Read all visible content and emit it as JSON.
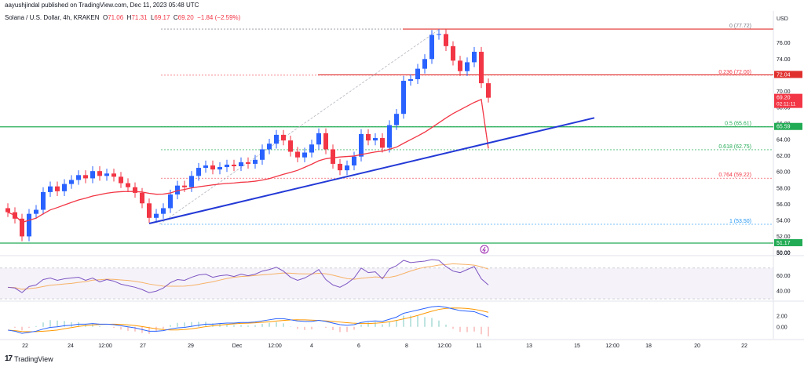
{
  "header": {
    "credit": "aayushjindal published on TradingView.com, Dec 11, 2023 05:48 UTC",
    "symbol": "Solana / U.S. Dollar, 4h, KRAKEN",
    "o_label": "O",
    "o": "71.06",
    "h_label": "H",
    "h": "71.31",
    "l_label": "L",
    "l": "69.17",
    "c_label": "C",
    "c": "69.20",
    "change": "−1.84 (−2.59%)"
  },
  "footer": {
    "brand": "TradingView"
  },
  "colors": {
    "up": "#2962ff",
    "down": "#f23645",
    "ma": "#f23645",
    "trendline": "#2339d6",
    "support": "#22ab55",
    "resistance": "#e0302d",
    "rsi": "#7e57c2",
    "rsi_ma": "#f7b267",
    "macd": "#2962ff",
    "signal": "#ff9800"
  },
  "chart_data": [
    {
      "type": "candlestick",
      "title": "",
      "ylabel": "USD",
      "ylim": [
        50,
        78.6
      ],
      "y_ticks": [
        "50.00",
        "52.00",
        "54.00",
        "56.00",
        "58.00",
        "60.00",
        "62.00",
        "64.00",
        "66.00",
        "68.00",
        "70.00",
        "72.00",
        "74.00",
        "76.00"
      ],
      "x_ticks": [
        "22",
        "24",
        "12:00",
        "27",
        "29",
        "Dec",
        "12:00",
        "4",
        "6",
        "8",
        "12:00",
        "11",
        "13",
        "15",
        "12:00",
        "18",
        "20",
        "22"
      ],
      "close_series": [
        55.0,
        54.2,
        52.0,
        54.8,
        55.3,
        57.5,
        58.2,
        57.6,
        58.5,
        59.0,
        59.6,
        59.2,
        60.1,
        59.5,
        59.8,
        59.4,
        58.6,
        58.1,
        57.4,
        56.1,
        54.3,
        54.8,
        55.5,
        57.2,
        58.3,
        58.1,
        59.5,
        60.5,
        60.8,
        60.3,
        60.6,
        60.9,
        60.7,
        61.2,
        61.0,
        61.5,
        62.8,
        63.5,
        64.6,
        63.9,
        62.5,
        61.8,
        62.4,
        63.4,
        64.8,
        62.8,
        61.0,
        60.2,
        60.8,
        61.9,
        64.7,
        63.9,
        64.2,
        63.0,
        65.8,
        67.2,
        71.3,
        71.5,
        72.8,
        74.0,
        77.0,
        77.1,
        75.6,
        73.8,
        72.5,
        73.6,
        74.9,
        71.0,
        69.2
      ],
      "moving_average_end": 62.9,
      "fibonacci": [
        {
          "label": "0",
          "value": 77.72
        },
        {
          "label": "0.236",
          "value": 72.0
        },
        {
          "label": "0.5",
          "value": 65.61
        },
        {
          "label": "0.618",
          "value": 62.75
        },
        {
          "label": "0.764",
          "value": 59.22
        },
        {
          "label": "1",
          "value": 53.5
        }
      ],
      "price_tags": [
        {
          "value": "72.04",
          "kind": "resistance"
        },
        {
          "value": "69.20",
          "kind": "current",
          "countdown": "02:11:11"
        },
        {
          "value": "65.59",
          "kind": "support"
        },
        {
          "value": "51.17",
          "kind": "support"
        }
      ],
      "support_levels": [
        65.59,
        51.17
      ],
      "resistance_levels": [
        77.72,
        72.04
      ],
      "trendline": {
        "from": [
          20,
          53.6
        ],
        "to": [
          83,
          66.7
        ]
      }
    },
    {
      "type": "line",
      "name": "RSI",
      "y_ticks": [
        "40.00",
        "60.00"
      ],
      "ylim": [
        28,
        82
      ],
      "values": [
        45,
        44,
        38,
        46,
        48,
        55,
        57,
        54,
        56,
        57,
        58,
        54,
        57,
        52,
        55,
        53,
        49,
        47,
        45,
        42,
        38,
        40,
        44,
        51,
        55,
        54,
        58,
        61,
        62,
        58,
        60,
        61,
        59,
        62,
        60,
        62,
        66,
        68,
        71,
        66,
        58,
        54,
        57,
        62,
        68,
        55,
        48,
        45,
        50,
        57,
        70,
        64,
        65,
        56,
        69,
        73,
        80,
        77,
        78,
        79,
        81,
        80,
        72,
        66,
        64,
        68,
        72,
        56,
        48
      ]
    },
    {
      "type": "bar",
      "name": "MACD",
      "y_ticks": [
        "2.00",
        "0.00"
      ],
      "ylim": [
        -2.2,
        4.6
      ],
      "values": [
        -0.6,
        -0.8,
        -1.2,
        -1.0,
        -0.8,
        -0.4,
        -0.1,
        0.0,
        0.2,
        0.3,
        0.5,
        0.5,
        0.6,
        0.5,
        0.5,
        0.4,
        0.2,
        0.0,
        -0.2,
        -0.5,
        -0.8,
        -0.8,
        -0.7,
        -0.4,
        -0.2,
        -0.1,
        0.1,
        0.3,
        0.5,
        0.5,
        0.6,
        0.7,
        0.7,
        0.8,
        0.8,
        0.9,
        1.1,
        1.3,
        1.5,
        1.5,
        1.3,
        1.1,
        1.0,
        1.0,
        1.2,
        1.0,
        0.7,
        0.4,
        0.3,
        0.4,
        0.8,
        1.0,
        1.1,
        1.0,
        1.4,
        1.8,
        2.5,
        2.8,
        3.1,
        3.4,
        3.7,
        3.8,
        3.6,
        3.3,
        3.0,
        2.9,
        2.8,
        2.3,
        1.8
      ]
    }
  ]
}
